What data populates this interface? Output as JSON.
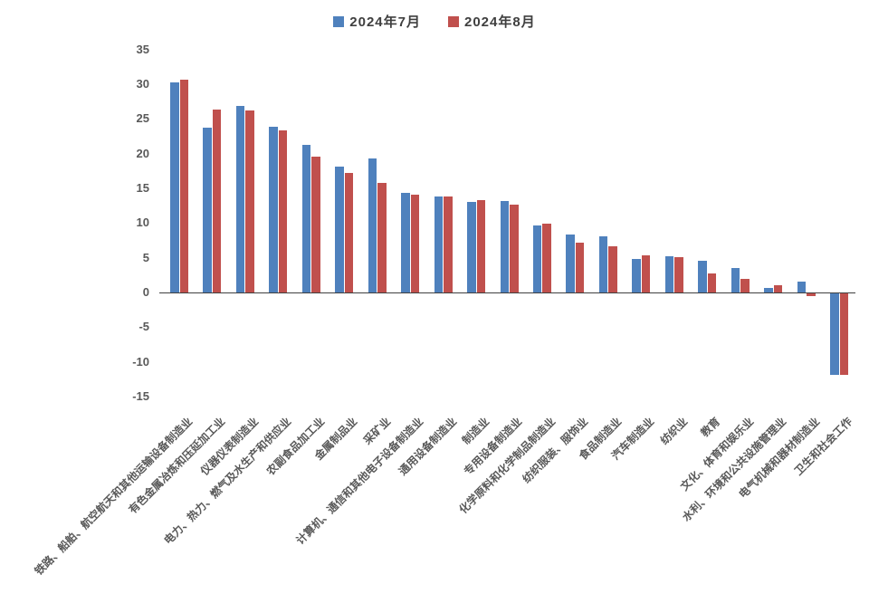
{
  "chart_data": {
    "type": "bar",
    "title": "",
    "xlabel": "",
    "ylabel": "",
    "ylim": [
      -15,
      35
    ],
    "yticks": [
      35,
      30,
      25,
      20,
      15,
      10,
      5,
      0,
      -5,
      -10,
      -15
    ],
    "grid": false,
    "legend_position": "top-center",
    "categories": [
      "铁路、船舶、航空航天和其他运输设备制造业",
      "有色金属冶炼和压延加工业",
      "仪器仪表制造业",
      "电力、热力、燃气及水生产和供应业",
      "农副食品加工业",
      "金属制品业",
      "采矿业",
      "计算机、通信和其他电子设备制造业",
      "通用设备制造业",
      "制造业",
      "专用设备制造业",
      "化学原料和化学制品制造业",
      "纺织服装、服饰业",
      "食品制造业",
      "汽车制造业",
      "纺织业",
      "教育",
      "文化、体育和娱乐业",
      "水利、环境和公共设施管理业",
      "电气机械和器材制造业",
      "卫生和社会工作"
    ],
    "series": [
      {
        "name": "2024年7月",
        "color": "#4F81BD",
        "values": [
          30.2,
          23.7,
          26.9,
          23.9,
          21.2,
          18.1,
          19.3,
          14.4,
          13.8,
          13.1,
          13.2,
          9.7,
          8.4,
          8.1,
          4.8,
          5.2,
          4.5,
          3.5,
          0.6,
          1.5,
          -11.7
        ]
      },
      {
        "name": "2024年8月",
        "color": "#C0504D",
        "values": [
          30.6,
          26.3,
          26.2,
          23.4,
          19.6,
          17.2,
          15.8,
          14.1,
          13.8,
          13.3,
          12.7,
          9.9,
          7.2,
          6.6,
          5.3,
          5.1,
          2.7,
          2.0,
          1.1,
          -0.4,
          -11.8
        ]
      }
    ]
  },
  "legend": {
    "items": [
      {
        "label": "2024年7月",
        "color": "#4F81BD"
      },
      {
        "label": "2024年8月",
        "color": "#C0504D"
      }
    ]
  }
}
